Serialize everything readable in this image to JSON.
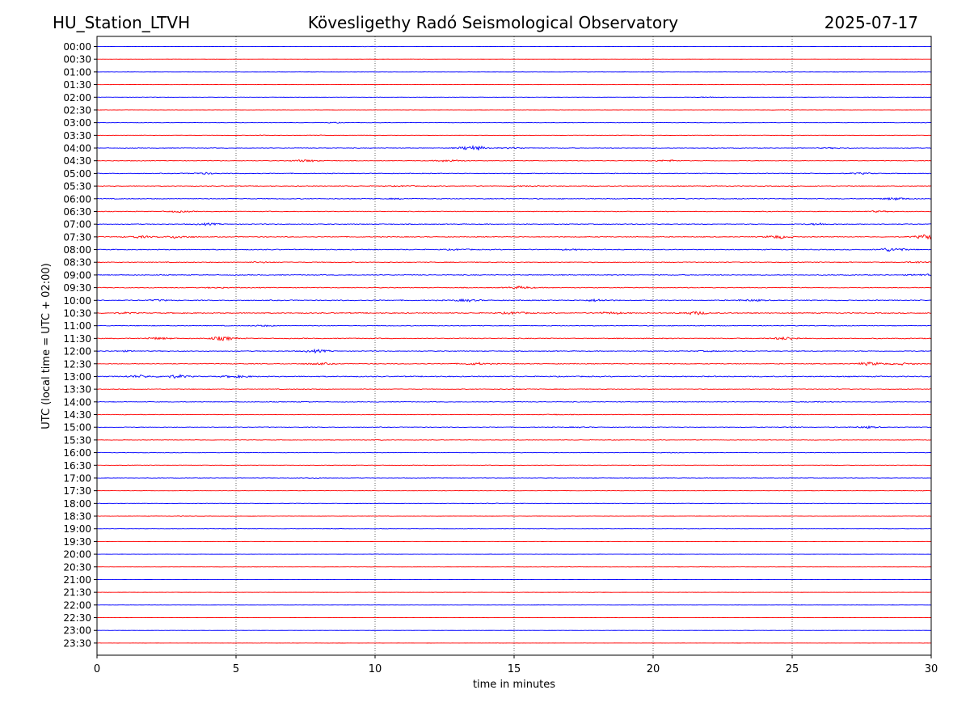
{
  "header": {
    "station": "HU_Station_LTVH",
    "observatory": "Kövesligethy Radó Seismological Observatory",
    "date": "2025-07-17"
  },
  "chart_data": {
    "type": "line",
    "title": "Kövesligethy Radó Seismological Observatory",
    "xlabel": "time in minutes",
    "ylabel": "UTC (local time = UTC + 02:00)",
    "xlim": [
      0,
      30
    ],
    "x_ticks": [
      0,
      5,
      10,
      15,
      20,
      25,
      30
    ],
    "x_grid": true,
    "trace_colors": [
      "#0000ff",
      "#ff0000"
    ],
    "rows": [
      {
        "label": "00:00",
        "amp": 0.12,
        "bursts": [
          [
            9.9,
            3.5
          ]
        ]
      },
      {
        "label": "00:30",
        "amp": 0.1,
        "bursts": [
          [
            11.6,
            2.0
          ]
        ]
      },
      {
        "label": "01:00",
        "amp": 0.15,
        "bursts": [
          [
            24.4,
            3.0
          ]
        ]
      },
      {
        "label": "01:30",
        "amp": 0.18,
        "bursts": [
          [
            23.8,
            3.0
          ],
          [
            24.9,
            2.0
          ]
        ]
      },
      {
        "label": "02:00",
        "amp": 0.22,
        "bursts": [
          [
            22.0,
            3.5
          ],
          [
            1.5,
            1.5
          ]
        ]
      },
      {
        "label": "02:30",
        "amp": 0.16,
        "bursts": [
          [
            24.6,
            2.5
          ]
        ]
      },
      {
        "label": "03:00",
        "amp": 0.25,
        "bursts": [
          [
            8.5,
            3.0
          ],
          [
            30.0,
            2.5
          ]
        ]
      },
      {
        "label": "03:30",
        "amp": 0.25,
        "bursts": [
          [
            6.0,
            2.5
          ],
          [
            8.0,
            2.0
          ]
        ]
      },
      {
        "label": "04:00",
        "amp": 0.4,
        "bursts": [
          [
            13.5,
            9.0
          ],
          [
            15.0,
            3.0
          ],
          [
            26.5,
            2.5
          ]
        ]
      },
      {
        "label": "04:30",
        "amp": 0.45,
        "bursts": [
          [
            7.5,
            4.0
          ],
          [
            12.7,
            4.0
          ],
          [
            20.5,
            3.0
          ]
        ]
      },
      {
        "label": "05:00",
        "amp": 0.5,
        "bursts": [
          [
            3.8,
            3.0
          ],
          [
            27.5,
            2.5
          ]
        ]
      },
      {
        "label": "05:30",
        "amp": 0.45,
        "bursts": [
          [
            11.0,
            2.0
          ],
          [
            15.5,
            2.0
          ]
        ]
      },
      {
        "label": "06:00",
        "amp": 0.5,
        "bursts": [
          [
            28.7,
            4.0
          ],
          [
            10.8,
            2.0
          ]
        ]
      },
      {
        "label": "06:30",
        "amp": 0.5,
        "bursts": [
          [
            2.9,
            3.0
          ],
          [
            28.0,
            2.5
          ]
        ]
      },
      {
        "label": "07:00",
        "amp": 0.55,
        "bursts": [
          [
            4.0,
            3.0
          ],
          [
            26.0,
            3.0
          ]
        ]
      },
      {
        "label": "07:30",
        "amp": 0.55,
        "bursts": [
          [
            1.5,
            3.5
          ],
          [
            2.9,
            4.0
          ],
          [
            24.5,
            4.5
          ],
          [
            29.9,
            6.5
          ]
        ]
      },
      {
        "label": "08:00",
        "amp": 0.6,
        "bursts": [
          [
            28.6,
            5.0
          ],
          [
            13.0,
            2.0
          ],
          [
            17.0,
            2.0
          ]
        ]
      },
      {
        "label": "08:30",
        "amp": 0.55,
        "bursts": [
          [
            6.0,
            2.0
          ],
          [
            29.5,
            2.5
          ]
        ]
      },
      {
        "label": "09:00",
        "amp": 0.55,
        "bursts": [
          [
            29.7,
            3.0
          ]
        ]
      },
      {
        "label": "09:30",
        "amp": 0.55,
        "bursts": [
          [
            15.2,
            3.5
          ],
          [
            4.3,
            2.0
          ]
        ]
      },
      {
        "label": "10:00",
        "amp": 0.65,
        "bursts": [
          [
            13.3,
            3.0
          ],
          [
            18.0,
            3.0
          ],
          [
            23.5,
            2.5
          ],
          [
            2.2,
            2.0
          ]
        ]
      },
      {
        "label": "10:30",
        "amp": 0.65,
        "bursts": [
          [
            15.0,
            3.0
          ],
          [
            18.5,
            3.0
          ],
          [
            21.5,
            4.0
          ],
          [
            1.0,
            2.0
          ]
        ]
      },
      {
        "label": "11:00",
        "amp": 0.5,
        "bursts": [
          [
            6.0,
            2.5
          ]
        ]
      },
      {
        "label": "11:30",
        "amp": 0.6,
        "bursts": [
          [
            4.5,
            5.0
          ],
          [
            24.8,
            4.0
          ],
          [
            2.2,
            3.0
          ]
        ]
      },
      {
        "label": "12:00",
        "amp": 0.55,
        "bursts": [
          [
            7.9,
            4.0
          ],
          [
            1.0,
            2.0
          ],
          [
            22.0,
            2.0
          ]
        ]
      },
      {
        "label": "12:30",
        "amp": 0.55,
        "bursts": [
          [
            8.0,
            3.0
          ],
          [
            13.6,
            3.5
          ],
          [
            27.8,
            4.5
          ],
          [
            29.0,
            3.0
          ]
        ]
      },
      {
        "label": "13:00",
        "amp": 0.7,
        "bursts": [
          [
            1.5,
            3.0
          ],
          [
            2.8,
            3.5
          ],
          [
            5.0,
            3.0
          ]
        ]
      },
      {
        "label": "13:30",
        "amp": 0.45,
        "bursts": [
          [
            15.0,
            2.0
          ],
          [
            7.5,
            1.5
          ]
        ]
      },
      {
        "label": "14:00",
        "amp": 0.45,
        "bursts": [
          [
            25.8,
            2.0
          ],
          [
            7.6,
            1.5
          ]
        ]
      },
      {
        "label": "14:30",
        "amp": 0.4,
        "bursts": [
          [
            16.5,
            2.0
          ]
        ]
      },
      {
        "label": "15:00",
        "amp": 0.45,
        "bursts": [
          [
            27.7,
            3.5
          ],
          [
            17.3,
            2.0
          ],
          [
            25.0,
            2.0
          ]
        ]
      },
      {
        "label": "15:30",
        "amp": 0.35,
        "bursts": [
          [
            10.0,
            1.8
          ]
        ]
      },
      {
        "label": "16:00",
        "amp": 0.35,
        "bursts": [
          [
            20.8,
            2.0
          ],
          [
            5.0,
            1.5
          ]
        ]
      },
      {
        "label": "16:30",
        "amp": 0.3,
        "bursts": []
      },
      {
        "label": "17:00",
        "amp": 0.3,
        "bursts": [
          [
            7.8,
            2.0
          ]
        ]
      },
      {
        "label": "17:30",
        "amp": 0.25,
        "bursts": [
          [
            29.5,
            2.0
          ]
        ]
      },
      {
        "label": "18:00",
        "amp": 0.25,
        "bursts": [
          [
            14.2,
            2.0
          ],
          [
            7.0,
            1.5
          ]
        ]
      },
      {
        "label": "18:30",
        "amp": 0.2,
        "bursts": [
          [
            3.2,
            2.0
          ]
        ]
      },
      {
        "label": "19:00",
        "amp": 0.2,
        "bursts": [
          [
            4.9,
            2.5
          ],
          [
            8.5,
            2.5
          ]
        ]
      },
      {
        "label": "19:30",
        "amp": 0.15,
        "bursts": []
      },
      {
        "label": "20:00",
        "amp": 0.12,
        "bursts": [
          [
            10.4,
            2.0
          ],
          [
            20.5,
            1.5
          ]
        ]
      },
      {
        "label": "20:30",
        "amp": 0.15,
        "bursts": [
          [
            17.0,
            2.0
          ],
          [
            21.8,
            2.0
          ]
        ]
      },
      {
        "label": "21:00",
        "amp": 0.12,
        "bursts": [
          [
            13.0,
            1.5
          ]
        ]
      },
      {
        "label": "21:30",
        "amp": 0.12,
        "bursts": [
          [
            17.5,
            2.0
          ]
        ]
      },
      {
        "label": "22:00",
        "amp": 0.12,
        "bursts": [
          [
            2.1,
            1.5
          ]
        ]
      },
      {
        "label": "22:30",
        "amp": 0.1,
        "bursts": []
      },
      {
        "label": "23:00",
        "amp": 0.1,
        "bursts": [
          [
            23.3,
            1.5
          ]
        ]
      },
      {
        "label": "23:30",
        "amp": 0.1,
        "bursts": []
      }
    ]
  }
}
